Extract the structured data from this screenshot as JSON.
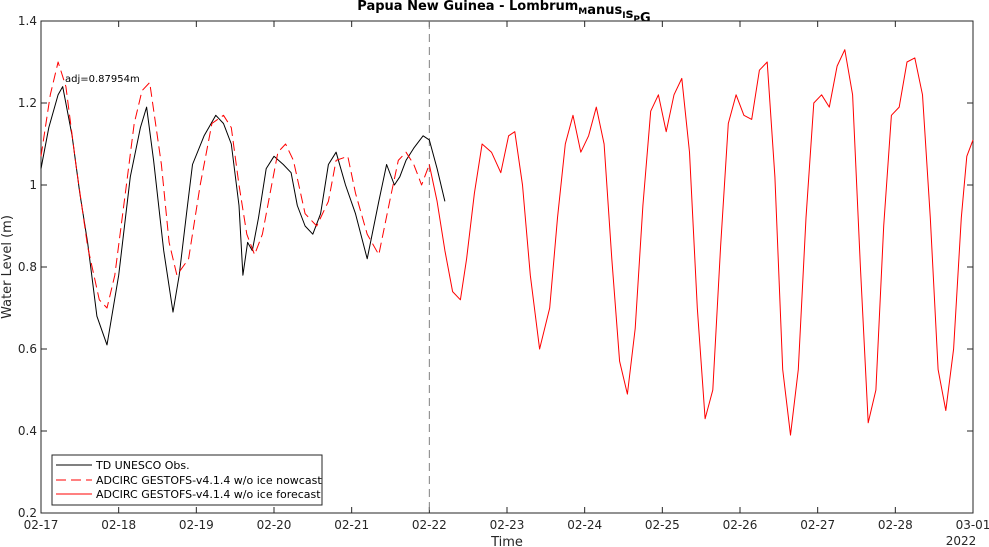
{
  "chart_data": {
    "type": "line",
    "title": {
      "main": "Papua New Guinea - Lombrum",
      "segments": [
        {
          "text": "Lombrum",
          "sub": false
        },
        {
          "text": "M",
          "sub": true
        },
        {
          "text": "anus",
          "sub": false
        },
        {
          "text": "I",
          "sub": true
        },
        {
          "text": "s",
          "sub": false
        },
        {
          "text": "P",
          "sub": true
        },
        {
          "text": "G",
          "sub": false
        }
      ]
    },
    "xlabel": "Time",
    "ylabel": "Water Level (m)",
    "year_label": "2022",
    "xlim": [
      0,
      12
    ],
    "ylim": [
      0.2,
      1.4
    ],
    "x_ticks": [
      0,
      1,
      2,
      3,
      4,
      5,
      6,
      7,
      8,
      9,
      10,
      11,
      12
    ],
    "x_tick_labels": [
      "02-17",
      "02-18",
      "02-19",
      "02-20",
      "02-21",
      "02-22",
      "02-23",
      "02-24",
      "02-25",
      "02-26",
      "02-27",
      "02-28",
      "03-01"
    ],
    "y_ticks": [
      0.2,
      0.4,
      0.6,
      0.8,
      1.0,
      1.2,
      1.4
    ],
    "y_tick_labels": [
      "0.2",
      "0.4",
      "0.6",
      "0.8",
      "1",
      "1.2",
      "1.4"
    ],
    "grid": false,
    "nowcast_forecast_divider_x": 5.0,
    "annotation": "adj=0.87954m",
    "legend": {
      "placement": "bottom-left",
      "entries": [
        {
          "label": "TD UNESCO Obs.",
          "color": "#000000",
          "style": "solid"
        },
        {
          "label": "ADCIRC GESTOFS-v4.1.4 w/o ice nowcast",
          "color": "#ff0000",
          "style": "dashed"
        },
        {
          "label": "ADCIRC GESTOFS-v4.1.4 w/o ice forecast",
          "color": "#ff0000",
          "style": "solid"
        }
      ]
    },
    "series": [
      {
        "name": "TD UNESCO Obs.",
        "color": "#000000",
        "x": [
          0.0,
          0.1,
          0.22,
          0.28,
          0.4,
          0.5,
          0.6,
          0.72,
          0.85,
          1.0,
          1.15,
          1.28,
          1.36,
          1.45,
          1.58,
          1.7,
          1.78,
          1.88,
          1.95,
          2.1,
          2.25,
          2.35,
          2.45,
          2.55,
          2.6,
          2.66,
          2.72,
          2.8,
          2.9,
          3.0,
          3.12,
          3.22,
          3.3,
          3.4,
          3.5,
          3.6,
          3.7,
          3.8,
          3.92,
          4.05,
          4.2,
          4.35,
          4.45,
          4.55,
          4.62,
          4.7,
          4.8,
          4.92,
          5.0,
          5.1,
          5.2
        ],
        "y": [
          1.04,
          1.14,
          1.22,
          1.24,
          1.12,
          0.98,
          0.86,
          0.68,
          0.61,
          0.78,
          1.02,
          1.14,
          1.19,
          1.06,
          0.84,
          0.69,
          0.78,
          0.94,
          1.05,
          1.12,
          1.17,
          1.15,
          1.1,
          0.95,
          0.78,
          0.86,
          0.84,
          0.92,
          1.04,
          1.07,
          1.05,
          1.03,
          0.95,
          0.9,
          0.88,
          0.93,
          1.05,
          1.08,
          1.0,
          0.93,
          0.82,
          0.96,
          1.05,
          1.0,
          1.02,
          1.06,
          1.09,
          1.12,
          1.11,
          1.04,
          0.96
        ]
      },
      {
        "name": "ADCIRC GESTOFS-v4.1.4 w/o ice nowcast",
        "color": "#ff0000",
        "x": [
          0.0,
          0.12,
          0.22,
          0.32,
          0.45,
          0.6,
          0.75,
          0.85,
          0.95,
          1.1,
          1.2,
          1.3,
          1.4,
          1.55,
          1.65,
          1.75,
          1.9,
          2.05,
          2.2,
          2.35,
          2.45,
          2.55,
          2.65,
          2.75,
          2.85,
          2.95,
          3.05,
          3.15,
          3.25,
          3.4,
          3.55,
          3.7,
          3.8,
          3.95,
          4.05,
          4.2,
          4.35,
          4.5,
          4.6,
          4.7,
          4.8,
          4.9,
          5.0
        ],
        "y": [
          1.07,
          1.22,
          1.3,
          1.24,
          1.05,
          0.85,
          0.72,
          0.7,
          0.78,
          1.0,
          1.15,
          1.23,
          1.25,
          1.05,
          0.86,
          0.78,
          0.82,
          1.0,
          1.15,
          1.17,
          1.14,
          1.0,
          0.88,
          0.83,
          0.88,
          0.98,
          1.08,
          1.1,
          1.06,
          0.93,
          0.9,
          0.96,
          1.06,
          1.07,
          0.98,
          0.88,
          0.83,
          0.97,
          1.06,
          1.08,
          1.05,
          1.0,
          1.05
        ]
      },
      {
        "name": "ADCIRC GESTOFS-v4.1.4 w/o ice forecast",
        "color": "#ff0000",
        "x": [
          5.0,
          5.1,
          5.2,
          5.3,
          5.4,
          5.48,
          5.58,
          5.68,
          5.8,
          5.92,
          6.02,
          6.1,
          6.2,
          6.3,
          6.42,
          6.55,
          6.65,
          6.75,
          6.85,
          6.95,
          7.05,
          7.15,
          7.25,
          7.35,
          7.45,
          7.55,
          7.65,
          7.75,
          7.85,
          7.95,
          8.05,
          8.15,
          8.25,
          8.35,
          8.45,
          8.55,
          8.65,
          8.75,
          8.85,
          8.95,
          9.05,
          9.15,
          9.25,
          9.35,
          9.45,
          9.55,
          9.65,
          9.75,
          9.85,
          9.95,
          10.05,
          10.15,
          10.25,
          10.35,
          10.45,
          10.55,
          10.65,
          10.75,
          10.85,
          10.95,
          11.05,
          11.15,
          11.25,
          11.35,
          11.45,
          11.55,
          11.65,
          11.75,
          11.85,
          11.92,
          12.0
        ],
        "y": [
          1.05,
          0.96,
          0.84,
          0.74,
          0.72,
          0.82,
          0.98,
          1.1,
          1.08,
          1.03,
          1.12,
          1.13,
          1.0,
          0.78,
          0.6,
          0.7,
          0.92,
          1.1,
          1.17,
          1.08,
          1.12,
          1.19,
          1.1,
          0.82,
          0.57,
          0.49,
          0.65,
          0.95,
          1.18,
          1.22,
          1.13,
          1.22,
          1.26,
          1.08,
          0.7,
          0.43,
          0.5,
          0.85,
          1.15,
          1.22,
          1.17,
          1.16,
          1.28,
          1.3,
          1.02,
          0.55,
          0.39,
          0.55,
          0.92,
          1.2,
          1.22,
          1.19,
          1.29,
          1.33,
          1.22,
          0.8,
          0.42,
          0.5,
          0.9,
          1.17,
          1.19,
          1.3,
          1.31,
          1.22,
          0.92,
          0.55,
          0.45,
          0.6,
          0.92,
          1.07,
          1.11
        ]
      }
    ]
  }
}
